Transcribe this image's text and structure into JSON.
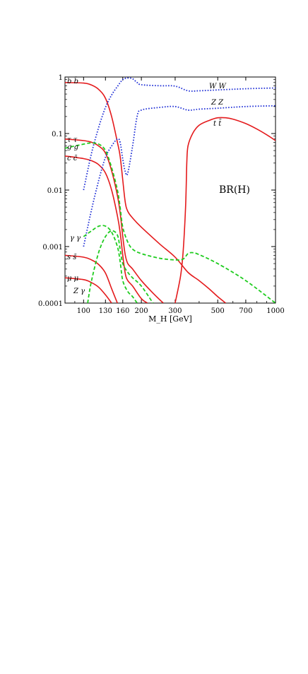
{
  "chart_data": {
    "type": "line",
    "xlabel": "M_H [GeV]",
    "ylabel": "",
    "annotation": "BR(H)",
    "x_scale": "log",
    "y_scale": "log",
    "xlim": [
      80,
      1000
    ],
    "ylim": [
      0.0001,
      1
    ],
    "x_ticks": [
      "100",
      "130",
      "160",
      "200",
      "300",
      "500",
      "700",
      "1000"
    ],
    "y_ticks": [
      "1",
      "0.1",
      "0.01",
      "0.001",
      "0.0001"
    ],
    "colors": {
      "fermion": "#e41a1c",
      "boson": "#1f2fd6",
      "loop": "#1fcc1f"
    },
    "series": [
      {
        "name": "b b̄",
        "color": "fermion",
        "style": "solid",
        "points": [
          [
            80,
            0.8
          ],
          [
            100,
            0.78
          ],
          [
            110,
            0.72
          ],
          [
            120,
            0.6
          ],
          [
            130,
            0.42
          ],
          [
            140,
            0.2
          ],
          [
            150,
            0.07
          ],
          [
            155,
            0.04
          ],
          [
            160,
            0.015
          ],
          [
            165,
            0.006
          ],
          [
            170,
            0.0042
          ],
          [
            180,
            0.0032
          ],
          [
            200,
            0.0022
          ],
          [
            250,
            0.0011
          ],
          [
            300,
            0.00065
          ],
          [
            350,
            0.00035
          ],
          [
            400,
            0.00025
          ],
          [
            450,
            0.00018
          ],
          [
            500,
            0.00013
          ],
          [
            550,
            0.0001
          ]
        ]
      },
      {
        "name": "τ τ",
        "color": "fermion",
        "style": "solid",
        "points": [
          [
            80,
            0.08
          ],
          [
            100,
            0.075
          ],
          [
            110,
            0.07
          ],
          [
            120,
            0.06
          ],
          [
            130,
            0.045
          ],
          [
            140,
            0.022
          ],
          [
            150,
            0.008
          ],
          [
            155,
            0.004
          ],
          [
            160,
            0.0015
          ],
          [
            165,
            0.0007
          ],
          [
            170,
            0.0005
          ],
          [
            180,
            0.0004
          ],
          [
            200,
            0.00025
          ],
          [
            230,
            0.00015
          ],
          [
            260,
            0.0001
          ]
        ]
      },
      {
        "name": "c c̄",
        "color": "fermion",
        "style": "solid",
        "points": [
          [
            80,
            0.04
          ],
          [
            100,
            0.036
          ],
          [
            110,
            0.033
          ],
          [
            120,
            0.028
          ],
          [
            130,
            0.02
          ],
          [
            140,
            0.01
          ],
          [
            150,
            0.0035
          ],
          [
            155,
            0.0018
          ],
          [
            160,
            0.0007
          ],
          [
            165,
            0.00033
          ],
          [
            170,
            0.00025
          ],
          [
            180,
            0.0002
          ],
          [
            200,
            0.00012
          ],
          [
            215,
            0.0001
          ]
        ]
      },
      {
        "name": "s s̄",
        "color": "fermion",
        "style": "solid",
        "points": [
          [
            80,
            0.0007
          ],
          [
            100,
            0.00065
          ],
          [
            110,
            0.00058
          ],
          [
            120,
            0.00048
          ],
          [
            130,
            0.00034
          ],
          [
            140,
            0.00018
          ],
          [
            150,
            0.0001
          ]
        ]
      },
      {
        "name": "μ μ",
        "color": "fermion",
        "style": "solid",
        "points": [
          [
            80,
            0.00028
          ],
          [
            100,
            0.00026
          ],
          [
            110,
            0.00023
          ],
          [
            120,
            0.00019
          ],
          [
            130,
            0.00014
          ],
          [
            140,
            0.0001
          ]
        ]
      },
      {
        "name": "t t̄",
        "color": "fermion",
        "style": "solid",
        "points": [
          [
            300,
            0.0001
          ],
          [
            320,
            0.0003
          ],
          [
            330,
            0.0008
          ],
          [
            340,
            0.005
          ],
          [
            345,
            0.03
          ],
          [
            350,
            0.06
          ],
          [
            370,
            0.1
          ],
          [
            400,
            0.14
          ],
          [
            450,
            0.17
          ],
          [
            500,
            0.19
          ],
          [
            550,
            0.19
          ],
          [
            600,
            0.18
          ],
          [
            700,
            0.15
          ],
          [
            800,
            0.12
          ],
          [
            900,
            0.095
          ],
          [
            1000,
            0.075
          ]
        ]
      },
      {
        "name": "W W",
        "color": "boson",
        "style": "dotted",
        "points": [
          [
            100,
            0.01
          ],
          [
            110,
            0.045
          ],
          [
            120,
            0.13
          ],
          [
            130,
            0.29
          ],
          [
            140,
            0.48
          ],
          [
            150,
            0.68
          ],
          [
            160,
            0.9
          ],
          [
            170,
            0.96
          ],
          [
            180,
            0.93
          ],
          [
            190,
            0.8
          ],
          [
            200,
            0.73
          ],
          [
            250,
            0.7
          ],
          [
            300,
            0.69
          ],
          [
            350,
            0.57
          ],
          [
            400,
            0.57
          ],
          [
            500,
            0.59
          ],
          [
            700,
            0.62
          ],
          [
            1000,
            0.64
          ]
        ]
      },
      {
        "name": "Z Z",
        "color": "boson",
        "style": "dotted",
        "points": [
          [
            100,
            0.001
          ],
          [
            110,
            0.0045
          ],
          [
            120,
            0.015
          ],
          [
            130,
            0.038
          ],
          [
            140,
            0.06
          ],
          [
            150,
            0.08
          ],
          [
            155,
            0.07
          ],
          [
            160,
            0.035
          ],
          [
            165,
            0.021
          ],
          [
            170,
            0.02
          ],
          [
            180,
            0.06
          ],
          [
            190,
            0.2
          ],
          [
            200,
            0.26
          ],
          [
            250,
            0.29
          ],
          [
            300,
            0.3
          ],
          [
            350,
            0.26
          ],
          [
            400,
            0.27
          ],
          [
            500,
            0.28
          ],
          [
            700,
            0.3
          ],
          [
            1000,
            0.31
          ]
        ]
      },
      {
        "name": "g g",
        "color": "loop",
        "style": "dashed",
        "points": [
          [
            80,
            0.055
          ],
          [
            100,
            0.065
          ],
          [
            110,
            0.068
          ],
          [
            120,
            0.065
          ],
          [
            130,
            0.05
          ],
          [
            140,
            0.025
          ],
          [
            150,
            0.01
          ],
          [
            155,
            0.005
          ],
          [
            160,
            0.0022
          ],
          [
            170,
            0.0012
          ],
          [
            180,
            0.0009
          ],
          [
            200,
            0.00075
          ],
          [
            250,
            0.00062
          ],
          [
            300,
            0.00058
          ],
          [
            330,
            0.0006
          ],
          [
            350,
            0.00075
          ],
          [
            370,
            0.00078
          ],
          [
            400,
            0.00072
          ],
          [
            500,
            0.0005
          ],
          [
            700,
            0.00025
          ],
          [
            1000,
            0.0001
          ]
        ]
      },
      {
        "name": "γ γ",
        "color": "loop",
        "style": "dashed",
        "points": [
          [
            100,
            0.0015
          ],
          [
            110,
            0.0019
          ],
          [
            120,
            0.0023
          ],
          [
            130,
            0.0023
          ],
          [
            140,
            0.0018
          ],
          [
            150,
            0.001
          ],
          [
            155,
            0.00055
          ],
          [
            160,
            0.00025
          ],
          [
            170,
            0.00016
          ],
          [
            180,
            0.00013
          ],
          [
            190,
            0.0001
          ]
        ]
      },
      {
        "name": "Z γ",
        "color": "loop",
        "style": "dashed",
        "points": [
          [
            105,
            0.0001
          ],
          [
            110,
            0.00025
          ],
          [
            120,
            0.0008
          ],
          [
            130,
            0.0015
          ],
          [
            140,
            0.0019
          ],
          [
            150,
            0.0016
          ],
          [
            155,
            0.0009
          ],
          [
            160,
            0.0005
          ],
          [
            170,
            0.00035
          ],
          [
            180,
            0.00028
          ],
          [
            200,
            0.0002
          ],
          [
            230,
            0.0001
          ]
        ]
      }
    ],
    "labels": [
      {
        "text": "b b̄",
        "series": 0,
        "side": "left"
      },
      {
        "text": "τ τ",
        "series": 1,
        "side": "left"
      },
      {
        "text": "g g",
        "series": 8,
        "side": "left"
      },
      {
        "text": "c c̄",
        "series": 2,
        "side": "left"
      },
      {
        "text": "γ γ",
        "series": 9,
        "side": "left"
      },
      {
        "text": "s s̄",
        "series": 3,
        "side": "left"
      },
      {
        "text": "μ μ",
        "series": 4,
        "side": "left"
      },
      {
        "text": "Z γ",
        "series": 10,
        "side": "left"
      },
      {
        "text": "W W",
        "series": 6,
        "side": "right"
      },
      {
        "text": "Z Z",
        "series": 7,
        "side": "right"
      },
      {
        "text": "t t̄",
        "series": 5,
        "side": "right"
      }
    ]
  }
}
